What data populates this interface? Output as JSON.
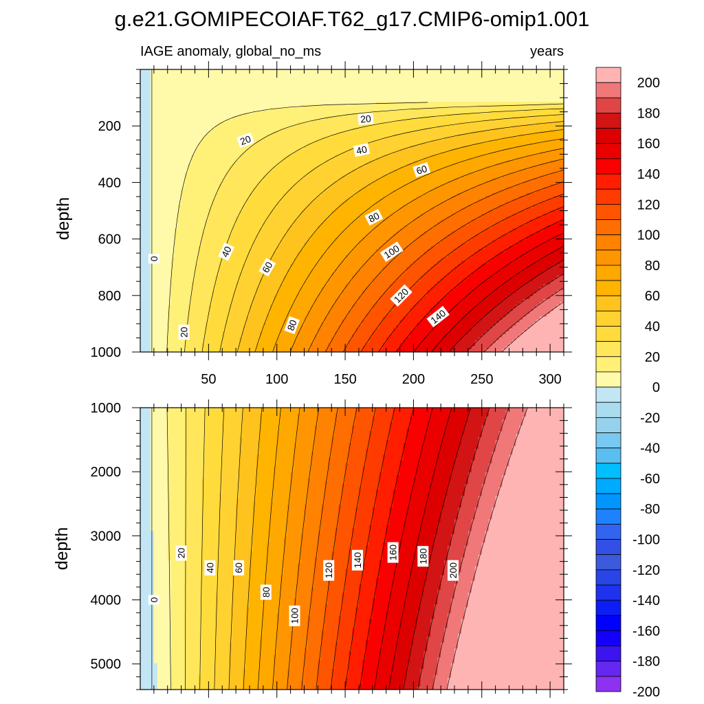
{
  "chart_data": {
    "type": "heatmap",
    "title": "g.e21.GOMIPECOIAF.T62_g17.CMIP6-omip1.001",
    "subtitle_left": "IAGE anomaly, global_no_ms",
    "subtitle_right": "years",
    "panels": [
      {
        "name": "upper",
        "ylabel": "depth",
        "ylim": [
          0,
          1000
        ],
        "xlim": [
          0,
          310
        ],
        "x_ticks": [
          50,
          100,
          150,
          200,
          250,
          300
        ],
        "x_tick_labels": [
          "50",
          "100",
          "150",
          "200",
          "250",
          "300"
        ],
        "y_ticks": [
          200,
          400,
          600,
          800,
          1000
        ],
        "y_tick_labels": [
          "200",
          "400",
          "600",
          "800",
          "1000"
        ],
        "contour_labels": [
          {
            "text": "0",
            "x": 10,
            "y": 670,
            "angle": -90
          },
          {
            "text": "20",
            "x": 77,
            "y": 250,
            "angle": -20
          },
          {
            "text": "20",
            "x": 165,
            "y": 175,
            "angle": -5
          },
          {
            "text": "20",
            "x": 32,
            "y": 930,
            "angle": -90
          },
          {
            "text": "40",
            "x": 162,
            "y": 285,
            "angle": -12
          },
          {
            "text": "40",
            "x": 63,
            "y": 645,
            "angle": -65
          },
          {
            "text": "60",
            "x": 206,
            "y": 355,
            "angle": -18
          },
          {
            "text": "60",
            "x": 93,
            "y": 700,
            "angle": -60
          },
          {
            "text": "80",
            "x": 171,
            "y": 523,
            "angle": -27
          },
          {
            "text": "80",
            "x": 111,
            "y": 905,
            "angle": -70
          },
          {
            "text": "100",
            "x": 184,
            "y": 645,
            "angle": -33
          },
          {
            "text": "120",
            "x": 191,
            "y": 800,
            "angle": -45
          },
          {
            "text": "140",
            "x": 218,
            "y": 875,
            "angle": -38
          }
        ]
      },
      {
        "name": "lower",
        "ylabel": "depth",
        "ylim": [
          1000,
          5400
        ],
        "xlim": [
          0,
          310
        ],
        "y_ticks": [
          1000,
          2000,
          3000,
          4000,
          5000
        ],
        "y_tick_labels": [
          "1000",
          "2000",
          "3000",
          "4000",
          "5000"
        ],
        "contour_labels": [
          {
            "text": "0",
            "x": 10,
            "y": 4000,
            "angle": -90
          },
          {
            "text": "20",
            "x": 30,
            "y": 3270,
            "angle": -90
          },
          {
            "text": "40",
            "x": 51,
            "y": 3500,
            "angle": -90
          },
          {
            "text": "60",
            "x": 72,
            "y": 3500,
            "angle": -90
          },
          {
            "text": "80",
            "x": 92,
            "y": 3880,
            "angle": -90
          },
          {
            "text": "100",
            "x": 113,
            "y": 4250,
            "angle": -90
          },
          {
            "text": "120",
            "x": 138,
            "y": 3540,
            "angle": -90
          },
          {
            "text": "140",
            "x": 159,
            "y": 3380,
            "angle": -90
          },
          {
            "text": "160",
            "x": 185,
            "y": 3260,
            "angle": -90
          },
          {
            "text": "180",
            "x": 207,
            "y": 3320,
            "angle": -90
          },
          {
            "text": "200",
            "x": 229,
            "y": 3540,
            "angle": -90
          }
        ]
      }
    ],
    "colorbar": {
      "labels": [
        "200",
        "180",
        "160",
        "140",
        "120",
        "100",
        "80",
        "60",
        "40",
        "20",
        "0",
        "-20",
        "-40",
        "-60",
        "-80",
        "-100",
        "-120",
        "-140",
        "-160",
        "-180",
        "-200"
      ],
      "colors": [
        "#FFB4B4",
        "#F07878",
        "#E04646",
        "#D21414",
        "#DC0000",
        "#EB0000",
        "#FA0000",
        "#FF1E00",
        "#FF3C00",
        "#FF5500",
        "#FF6E00",
        "#FF8200",
        "#FF9600",
        "#FFA800",
        "#FFB400",
        "#FFC31E",
        "#FFD232",
        "#FFDC3C",
        "#FFE65A",
        "#FFF078",
        "#FFFAAA",
        "#C3E6F5",
        "#AADCF0",
        "#96D2EB",
        "#78C8F0",
        "#5ABEF0",
        "#00BEFF",
        "#00AAFF",
        "#0096FF",
        "#1E82FF",
        "#3264F0",
        "#3250E6",
        "#3C5ADC",
        "#2846E6",
        "#1E32F0",
        "#0A1EF5",
        "#0000FF",
        "#1400FA",
        "#3C14F0",
        "#6428F0",
        "#8C32F0"
      ]
    }
  }
}
